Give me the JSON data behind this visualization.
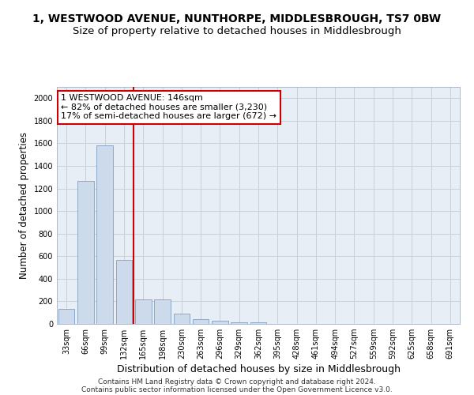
{
  "title": "1, WESTWOOD AVENUE, NUNTHORPE, MIDDLESBROUGH, TS7 0BW",
  "subtitle": "Size of property relative to detached houses in Middlesbrough",
  "xlabel": "Distribution of detached houses by size in Middlesbrough",
  "ylabel": "Number of detached properties",
  "categories": [
    "33sqm",
    "66sqm",
    "99sqm",
    "132sqm",
    "165sqm",
    "198sqm",
    "230sqm",
    "263sqm",
    "296sqm",
    "329sqm",
    "362sqm",
    "395sqm",
    "428sqm",
    "461sqm",
    "494sqm",
    "527sqm",
    "559sqm",
    "592sqm",
    "625sqm",
    "658sqm",
    "691sqm"
  ],
  "values": [
    130,
    1270,
    1580,
    570,
    220,
    215,
    90,
    45,
    25,
    15,
    15,
    0,
    0,
    0,
    0,
    0,
    0,
    0,
    0,
    0,
    0
  ],
  "bar_color": "#ccdaec",
  "bar_edge_color": "#7090b8",
  "vline_color": "#cc0000",
  "vline_x": 3.5,
  "annotation_line1": "1 WESTWOOD AVENUE: 146sqm",
  "annotation_line2": "← 82% of detached houses are smaller (3,230)",
  "annotation_line3": "17% of semi-detached houses are larger (672) →",
  "annotation_box_facecolor": "#ffffff",
  "annotation_box_edgecolor": "#cc0000",
  "ylim": [
    0,
    2100
  ],
  "yticks": [
    0,
    200,
    400,
    600,
    800,
    1000,
    1200,
    1400,
    1600,
    1800,
    2000
  ],
  "grid_color": "#c8d0dc",
  "bg_color": "#e8eef5",
  "footer_line1": "Contains HM Land Registry data © Crown copyright and database right 2024.",
  "footer_line2": "Contains public sector information licensed under the Open Government Licence v3.0.",
  "title_fontsize": 10,
  "subtitle_fontsize": 9.5,
  "tick_fontsize": 7,
  "ylabel_fontsize": 8.5,
  "xlabel_fontsize": 9,
  "annot_fontsize": 8,
  "footer_fontsize": 6.5
}
